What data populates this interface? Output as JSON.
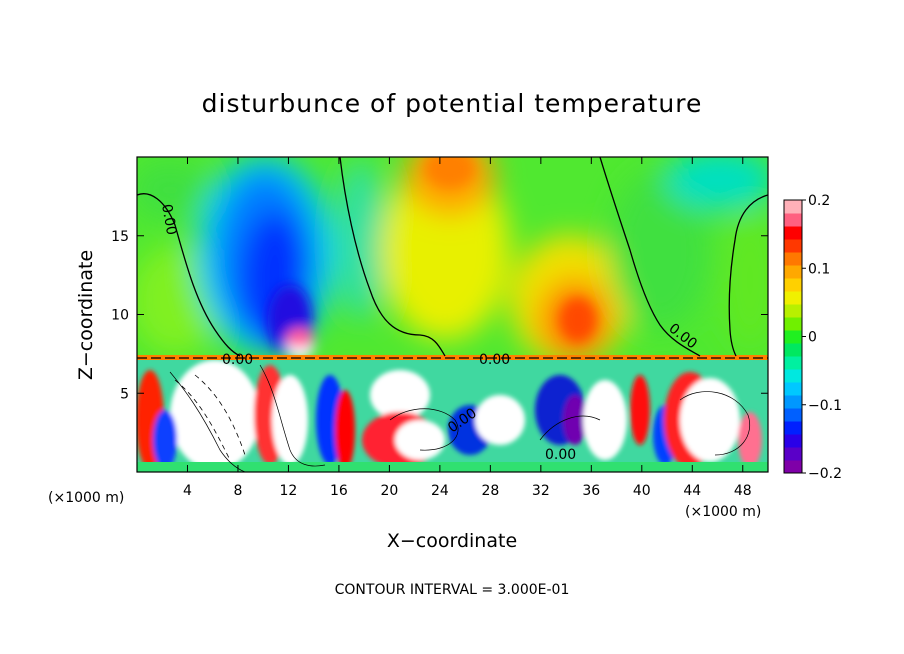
{
  "chart_data": {
    "type": "heatmap",
    "title": "disturbunce of potential temperature",
    "xlabel": "X−coordinate",
    "ylabel": "Z−coordinate",
    "x_unit": "(×1000 m)",
    "y_unit": "(×1000 m)",
    "xlim": [
      0,
      50
    ],
    "ylim": [
      0,
      20
    ],
    "x_ticks": [
      4,
      8,
      12,
      16,
      20,
      24,
      28,
      32,
      36,
      40,
      44,
      48
    ],
    "y_ticks": [
      5,
      10,
      15
    ],
    "colorbar": {
      "min": -0.2,
      "max": 0.2,
      "tick_values": [
        0.2,
        0.1,
        0,
        -0.1,
        -0.2
      ],
      "tick_labels": [
        "0.2",
        "0.1",
        "0",
        "−0.1",
        "−0.2"
      ],
      "colors": [
        "#7f00a8",
        "#5a00c8",
        "#2a00e8",
        "#0020ff",
        "#0060ff",
        "#0098ff",
        "#00c8ff",
        "#00e8e0",
        "#00f0a0",
        "#00e860",
        "#20f020",
        "#70f000",
        "#b8f000",
        "#f0f000",
        "#ffd000",
        "#ffa800",
        "#ff7800",
        "#ff3800",
        "#ff0000",
        "#ff6080",
        "#ffb0b8"
      ]
    },
    "contour_labels": [
      "0.00",
      "0.00",
      "0.00",
      "0.00",
      "0.00",
      "0.00"
    ],
    "contour_interval_text": "CONTOUR INTERVAL = 3.000E-01"
  }
}
